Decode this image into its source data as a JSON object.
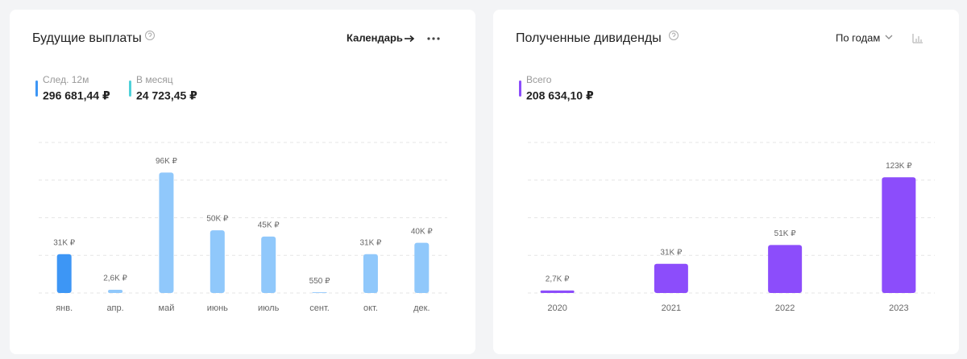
{
  "chart_data": [
    {
      "type": "bar",
      "title": "Будущие выплаты",
      "controls": [
        "Календарь"
      ],
      "stats": [
        {
          "label": "След. 12м",
          "value": "296 681,44 ₽",
          "color": "#3d96f5"
        },
        {
          "label": "В месяц",
          "value": "24 723,45 ₽",
          "color": "#4fd1d9"
        }
      ],
      "categories": [
        "янв.",
        "апр.",
        "май",
        "июнь",
        "июль",
        "сент.",
        "окт.",
        "дек."
      ],
      "values": [
        31000,
        2600,
        96000,
        50000,
        45000,
        550,
        31000,
        40000
      ],
      "value_labels": [
        "31K ₽",
        "2,6K ₽",
        "96K ₽",
        "50K ₽",
        "45K ₽",
        "550 ₽",
        "31K ₽",
        "40K ₽"
      ],
      "colors": [
        "#3d96f5",
        "#90c8fb",
        "#90c8fb",
        "#90c8fb",
        "#90c8fb",
        "#90c8fb",
        "#90c8fb",
        "#90c8fb"
      ],
      "ylim": [
        0,
        120000
      ],
      "yticks": [
        0,
        30000,
        60000,
        90000,
        120000
      ],
      "grid": true,
      "ytick_labels": false
    },
    {
      "type": "bar",
      "title": "Полученные дивиденды",
      "controls": [
        "По годам"
      ],
      "stats": [
        {
          "label": "Всего",
          "value": "208 634,10 ₽",
          "color": "#8c4dfb"
        }
      ],
      "categories": [
        "2020",
        "2021",
        "2022",
        "2023"
      ],
      "values": [
        2700,
        31000,
        51000,
        123000
      ],
      "value_labels": [
        "2,7K ₽",
        "31K ₽",
        "51K ₽",
        "123K ₽"
      ],
      "colors": [
        "#8c4dfb",
        "#8c4dfb",
        "#8c4dfb",
        "#8c4dfb"
      ],
      "ylim": [
        0,
        160000
      ],
      "yticks": [
        0,
        40000,
        80000,
        120000,
        160000
      ],
      "grid": true,
      "ytick_labels": false
    }
  ]
}
